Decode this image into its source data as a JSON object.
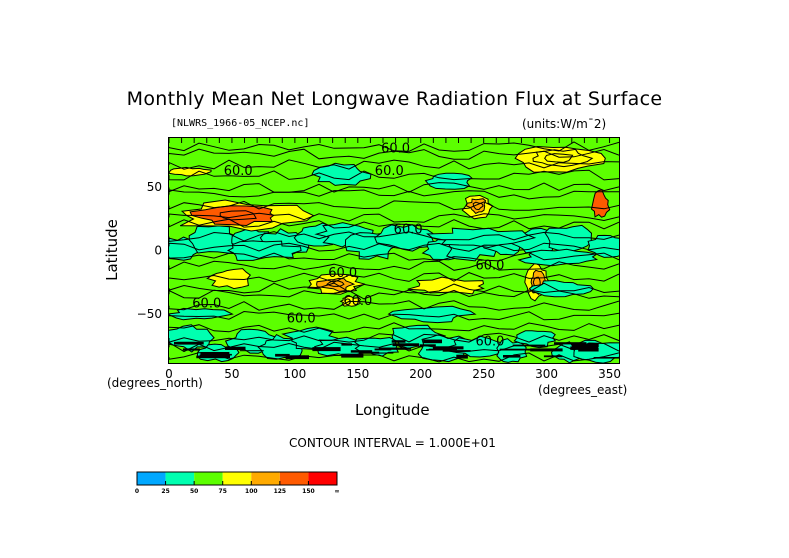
{
  "chart_data": {
    "type": "heatmap",
    "subtype": "filled-contour-map",
    "title": "Monthly Mean Net Longwave Radiation Flux at Surface",
    "file_label": "[NLWRS_1966-05_NCEP.nc]",
    "units_label": "(units:W/m¯2)",
    "xlabel": "Longitude",
    "ylabel": "Latitude",
    "x_units": "(degrees_east)",
    "y_units": "(degrees_north)",
    "xlim": [
      0,
      357.5
    ],
    "ylim": [
      -88.5,
      88.5
    ],
    "xticks": [
      0,
      50,
      100,
      150,
      200,
      250,
      300,
      350
    ],
    "xtick_labels": [
      "0",
      "50",
      "100",
      "150",
      "200",
      "250",
      "300",
      "350"
    ],
    "yticks": [
      50,
      0,
      -50
    ],
    "ytick_labels": [
      "50",
      "0",
      "−50"
    ],
    "contour_interval_text": "CONTOUR INTERVAL = 1.000E+01",
    "contour_labels": [
      {
        "text": "60.0",
        "lon": 180,
        "lat": 80
      },
      {
        "text": "60.0",
        "lon": 55,
        "lat": 62
      },
      {
        "text": "60.0",
        "lon": 175,
        "lat": 62
      },
      {
        "text": "60.0",
        "lon": 190,
        "lat": 16
      },
      {
        "text": "60.0",
        "lon": 138,
        "lat": -18
      },
      {
        "text": "60.0",
        "lon": 255,
        "lat": -12
      },
      {
        "text": "60.0",
        "lon": 30,
        "lat": -42
      },
      {
        "text": "60.0",
        "lon": 150,
        "lat": -40
      },
      {
        "text": "60.0",
        "lon": 105,
        "lat": -54
      },
      {
        "text": "60.0",
        "lon": 255,
        "lat": -72
      }
    ],
    "colorbar": {
      "levels": [
        "0",
        "25",
        "50",
        "75",
        "100",
        "125",
        "150",
        "∞"
      ],
      "colors": [
        "#00a8ff",
        "#00ffb0",
        "#5cff00",
        "#ffff00",
        "#ffaa00",
        "#ff5a00",
        "#ff0000"
      ]
    },
    "background_level_color": "#5cff00",
    "regions": [
      {
        "name": "ocean-band-equatorial-low",
        "level": "25-50",
        "color": "#00ffb0",
        "lon": [
          0,
          360
        ],
        "lat": [
          -8,
          25
        ]
      },
      {
        "name": "sahara-arabia-high",
        "level": "100-150",
        "color": "#ff5a00",
        "lon": [
          10,
          100
        ],
        "lat": [
          15,
          40
        ]
      },
      {
        "name": "australia-high",
        "level": "100-125",
        "color": "#ffaa00",
        "lon": [
          115,
          150
        ],
        "lat": [
          -35,
          -18
        ]
      },
      {
        "name": "north-america-west-high",
        "level": "100-125",
        "color": "#ffaa00",
        "lon": [
          235,
          255
        ],
        "lat": [
          25,
          45
        ]
      },
      {
        "name": "south-america-andes",
        "level": "mixed",
        "color": "#ffaa00",
        "lon": [
          285,
          300
        ],
        "lat": [
          -40,
          -10
        ]
      },
      {
        "name": "greenland-arctic",
        "level": "75-125",
        "color": "#ffff00",
        "lon": [
          280,
          340
        ],
        "lat": [
          60,
          85
        ]
      },
      {
        "name": "antarctic-band",
        "level": "mixed",
        "color": "#00ffb0",
        "lon": [
          0,
          360
        ],
        "lat": [
          -88,
          -60
        ]
      }
    ]
  }
}
